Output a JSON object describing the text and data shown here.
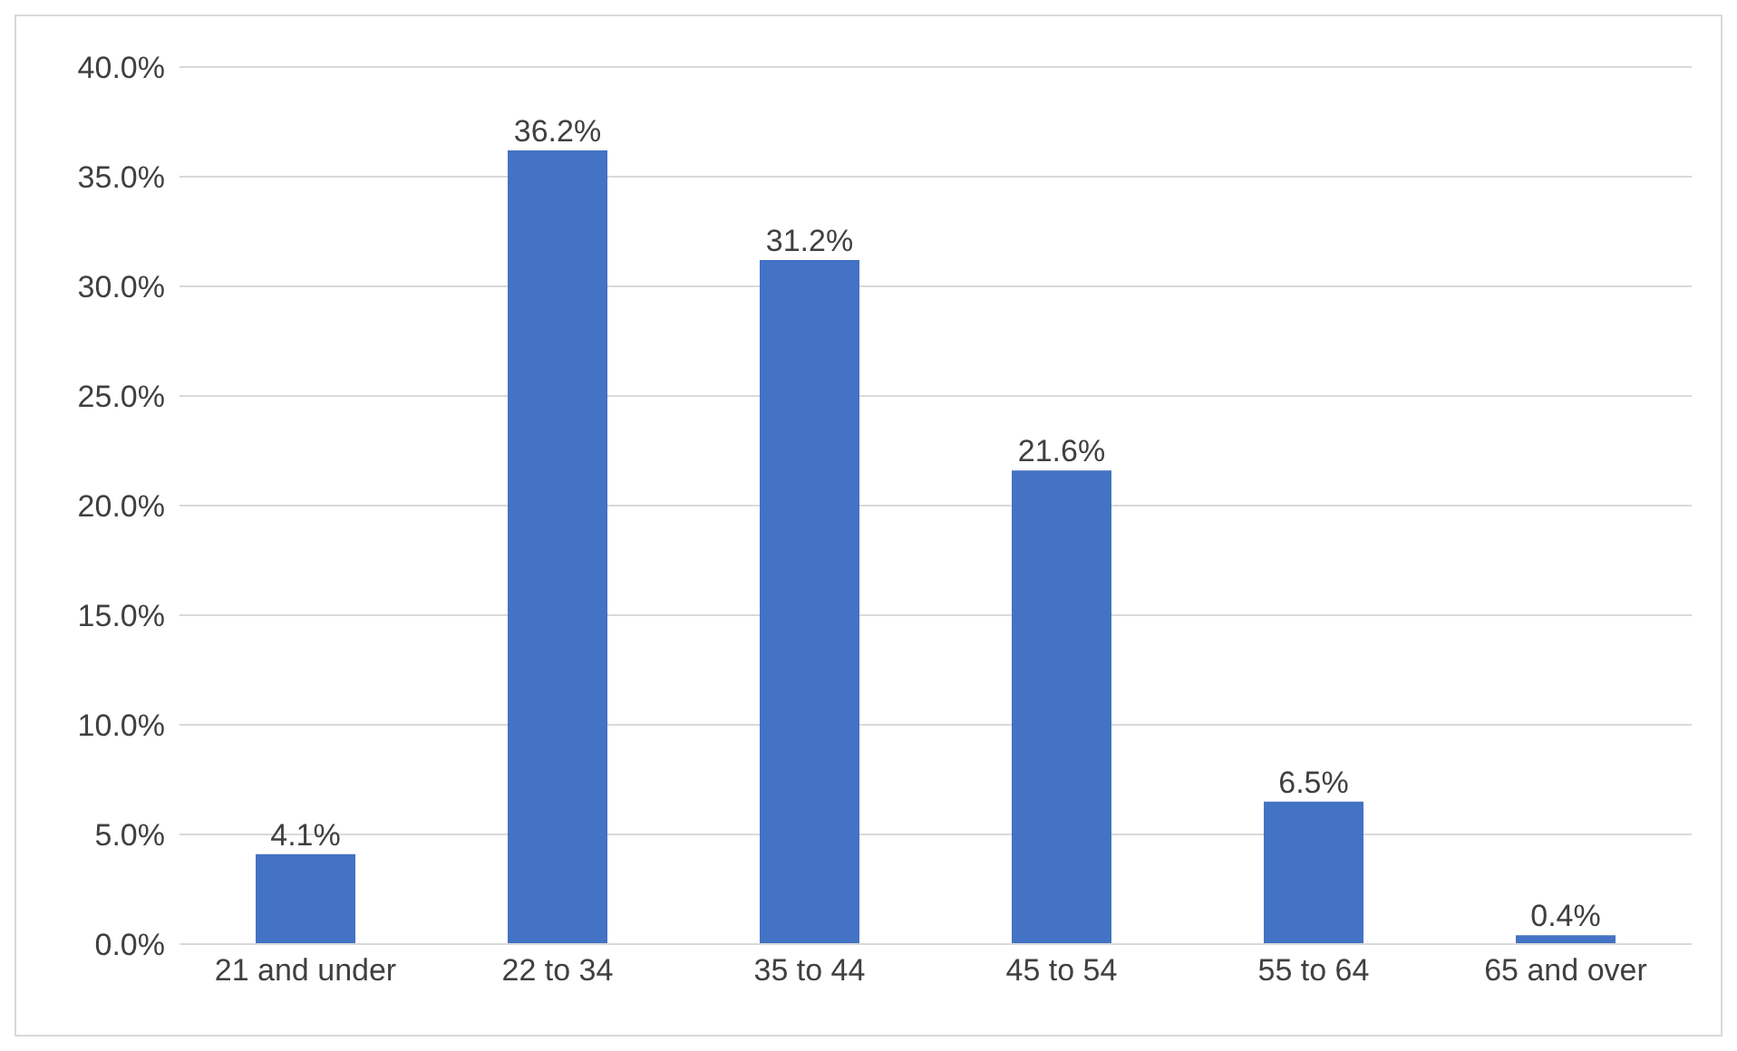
{
  "chart_data": {
    "type": "bar",
    "categories": [
      "21 and under",
      "22 to 34",
      "35 to 44",
      "45 to 54",
      "55 to 64",
      "65 and over"
    ],
    "values": [
      4.1,
      36.2,
      31.2,
      21.6,
      6.5,
      0.4
    ],
    "value_labels": [
      "4.1%",
      "36.2%",
      "31.2%",
      "21.6%",
      "6.5%",
      "0.4%"
    ],
    "color": "#4472c4",
    "ylim": [
      0,
      40
    ],
    "yticks": [
      {
        "value": 0,
        "label": "0.0%"
      },
      {
        "value": 5,
        "label": "5.0%"
      },
      {
        "value": 10,
        "label": "10.0%"
      },
      {
        "value": 15,
        "label": "15.0%"
      },
      {
        "value": 20,
        "label": "20.0%"
      },
      {
        "value": 25,
        "label": "25.0%"
      },
      {
        "value": 30,
        "label": "30.0%"
      },
      {
        "value": 35,
        "label": "35.0%"
      },
      {
        "value": 40,
        "label": "40.0%"
      }
    ],
    "grid": "y"
  }
}
